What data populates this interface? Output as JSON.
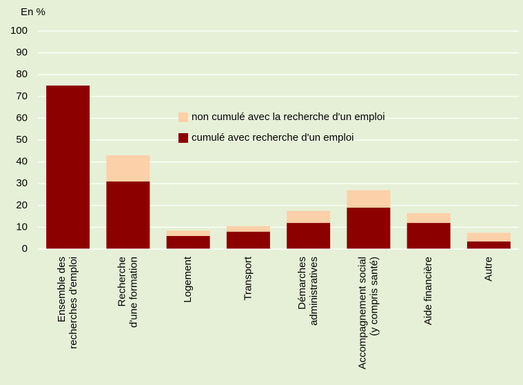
{
  "chart_data": {
    "type": "stacked_bar",
    "y_label": "En %",
    "categories": [
      "Ensemble des\nrecherches d'emploi",
      "Recherche\nd'une formation",
      "Logement",
      "Transport",
      "Démarches\nadministratives",
      "Accompagnement social\n(y compris santé)",
      "Aide financière",
      "Autre"
    ],
    "series": [
      {
        "name": "cumulé avec recherche d'un emploi",
        "color": "#8c0000",
        "values": [
          75,
          31,
          6,
          8,
          12,
          19,
          12,
          3.5
        ]
      },
      {
        "name": "non cumulé avec la recherche d'un emploi",
        "color": "#fcd0a8",
        "values": [
          0,
          12,
          2.5,
          2.5,
          5.5,
          8,
          4.5,
          4
        ]
      }
    ],
    "ylim": [
      0,
      100
    ],
    "yticks": [
      0,
      10,
      20,
      30,
      40,
      50,
      60,
      70,
      80,
      90,
      100
    ],
    "grid": true
  }
}
